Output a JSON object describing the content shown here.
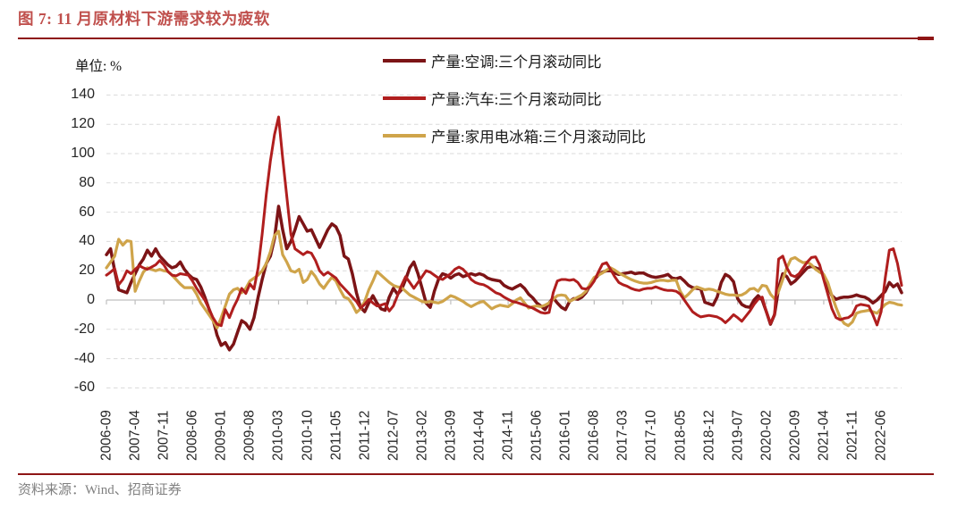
{
  "figure": {
    "title": "图 7: 11 月原材料下游需求较为疲软",
    "unit_label": "单位: %",
    "source_note": "资料来源：Wind、招商证券"
  },
  "colors": {
    "title": "#C0504D",
    "rule": "#8E1515",
    "gridline": "#DADADA",
    "zero_axis": "#BFBFBF",
    "series_ac": "#7C1416",
    "series_auto": "#B01E1E",
    "series_fridge": "#CFA44A"
  },
  "legend": {
    "items": [
      {
        "label": "产量:空调:三个月滚动同比",
        "color": "#7C1416"
      },
      {
        "label": "产量:汽车:三个月滚动同比",
        "color": "#B01E1E"
      },
      {
        "label": "产量:家用电冰箱:三个月滚动同比",
        "color": "#CFA44A"
      }
    ]
  },
  "chart_data": {
    "type": "line",
    "title": "图 7: 11 月原材料下游需求较为疲软",
    "ylabel": "单位: %",
    "ylim": [
      -60,
      140
    ],
    "y_ticks": [
      140,
      120,
      100,
      80,
      60,
      40,
      20,
      0,
      -20,
      -40,
      -60
    ],
    "grid": "horizontal-dashed",
    "legend_position": "top",
    "x_start": "2006-09",
    "x_end": "2022-11",
    "x_frequency": "monthly",
    "x_tick_every_n_months": 7,
    "x_tick_labels": [
      "2006-09",
      "2007-04",
      "2007-11",
      "2008-06",
      "2009-01",
      "2009-08",
      "2010-03",
      "2010-10",
      "2011-05",
      "2011-12",
      "2012-07",
      "2013-02",
      "2013-09",
      "2014-04",
      "2014-11",
      "2015-06",
      "2016-01",
      "2016-08",
      "2017-03",
      "2017-10",
      "2018-05",
      "2018-12",
      "2019-07",
      "2020-02",
      "2020-09",
      "2021-04",
      "2021-11",
      "2022-06"
    ],
    "series": [
      {
        "name": "产量:空调:三个月滚动同比",
        "color": "#7C1416",
        "values": [
          31,
          35,
          20,
          7,
          6,
          5,
          12,
          18,
          24,
          28,
          34,
          30,
          35,
          30,
          27,
          24,
          22,
          23,
          26,
          21,
          17.5,
          15,
          14,
          9,
          2,
          -6,
          -13,
          -24,
          -31,
          -29,
          -34,
          -30,
          -22,
          -14,
          -16,
          -20,
          -12,
          2,
          14,
          25,
          30,
          42,
          64,
          48,
          35,
          40,
          48,
          57,
          52,
          47,
          48,
          42,
          36,
          42,
          48,
          52,
          50,
          44,
          30,
          28,
          18,
          5,
          -5,
          -8,
          -2,
          3,
          -2,
          -6,
          -7,
          2,
          8,
          4,
          7,
          14,
          22,
          26,
          18,
          8,
          -2,
          -5,
          6,
          14,
          18,
          17,
          15,
          17,
          18,
          16,
          17,
          18,
          17,
          18,
          17,
          15,
          14,
          13.5,
          13,
          10,
          8.5,
          7.5,
          9,
          10.5,
          8,
          4,
          1.5,
          -2,
          -4,
          -6.5,
          -2,
          1.5,
          -2,
          -5,
          -6.5,
          -1,
          1,
          0.5,
          2,
          5,
          10,
          14,
          17,
          19,
          20,
          20,
          18.5,
          17.5,
          18,
          18.5,
          19,
          18,
          18.5,
          18.5,
          17,
          16,
          15.5,
          16,
          16.5,
          17.5,
          15,
          14.5,
          15.5,
          13,
          10,
          8.5,
          8,
          7.5,
          -1.5,
          -2.5,
          -3.5,
          2,
          12,
          17.5,
          16,
          12.5,
          1,
          -3,
          -4.5,
          -5,
          0,
          3,
          0,
          -8,
          -16.5,
          -10,
          8,
          18,
          16,
          11,
          13,
          16,
          19,
          22,
          23,
          22,
          21,
          17,
          9,
          3,
          0.5,
          1.5,
          2,
          2,
          2.5,
          3.5,
          2.5,
          2,
          0.5,
          -2,
          0,
          3,
          6,
          12,
          9,
          11,
          5
        ]
      },
      {
        "name": "产量:汽车:三个月滚动同比",
        "color": "#B01E1E",
        "values": [
          17,
          19,
          21.5,
          10.5,
          14,
          20,
          18,
          21,
          23.5,
          22,
          21,
          22.5,
          24,
          27,
          24,
          19.5,
          17,
          16.5,
          18,
          17.5,
          17,
          13,
          8,
          4,
          0,
          -6,
          -12,
          -16.5,
          -17.5,
          -6.5,
          -12,
          -5,
          0.5,
          8,
          4.5,
          11,
          7.5,
          22,
          45,
          72,
          95,
          113,
          125,
          97,
          71,
          45,
          35,
          33,
          31,
          33,
          32,
          27,
          20,
          17,
          19,
          17,
          15,
          11,
          8,
          5,
          2,
          -1,
          -5.5,
          -3,
          0.5,
          -2,
          -4,
          -3.5,
          -2.5,
          -7.5,
          -4,
          3,
          10,
          16,
          12,
          8,
          12,
          16,
          20,
          19,
          17,
          15,
          14,
          16,
          18,
          21,
          22.5,
          21,
          18,
          14,
          12,
          11,
          10.5,
          9,
          7,
          5,
          4,
          2,
          0.5,
          -1,
          -1.5,
          -2.5,
          -3.5,
          -4.5,
          -5.5,
          -7,
          -8.5,
          -9,
          -8.5,
          5,
          13,
          14,
          14,
          13.5,
          14,
          12,
          8,
          7.5,
          9,
          13,
          19,
          24.5,
          25.5,
          21,
          16,
          12,
          10.5,
          9.5,
          8,
          7,
          6.5,
          7.5,
          8,
          8,
          9,
          8,
          7,
          6.5,
          6.5,
          6,
          4,
          0,
          -4,
          -8,
          -10,
          -11.5,
          -11,
          -10.5,
          -11,
          -11.5,
          -13,
          -15.5,
          -13,
          -10,
          -12,
          -14.5,
          -11,
          -7.5,
          -3,
          0.5,
          2,
          -8,
          -16,
          -10,
          28,
          30,
          22,
          17,
          16,
          18,
          22,
          26,
          29,
          29.5,
          24,
          14,
          4,
          -6,
          -12,
          -13.5,
          -12.5,
          -12,
          -10,
          -4,
          -3,
          -3.5,
          -4,
          -10,
          -17,
          -8,
          15,
          34,
          35,
          25,
          10
        ]
      },
      {
        "name": "产量:家用电冰箱:三个月滚动同比",
        "color": "#CFA44A",
        "values": [
          22,
          26,
          30,
          41.5,
          37.5,
          40.5,
          40,
          6,
          13,
          19,
          22,
          21,
          20,
          21,
          20,
          19.5,
          17,
          14,
          11,
          8.5,
          8.5,
          8.5,
          4,
          -2,
          -6,
          -10,
          -14,
          -19,
          -12,
          -4,
          4,
          7,
          8,
          5,
          8,
          13,
          15,
          17,
          20,
          25,
          33,
          44,
          47,
          31,
          26,
          20,
          19,
          21,
          12,
          14,
          19.5,
          16,
          11,
          8,
          12,
          15.5,
          13,
          7,
          2,
          1,
          -3,
          -8.5,
          -6,
          -1,
          7,
          13,
          19.5,
          17,
          14.5,
          12,
          10,
          9,
          8.5,
          6,
          3.5,
          2,
          0.5,
          -1,
          -1.5,
          -1,
          -1.5,
          -2,
          -1,
          1,
          3,
          2,
          0.5,
          -1,
          -3,
          -4.5,
          -3,
          -1.5,
          -1,
          -3.5,
          -6,
          -4.5,
          -3.5,
          -4,
          -4.5,
          -2.5,
          0,
          1.5,
          -2,
          -5.5,
          -4.5,
          -4,
          -4.5,
          -3.5,
          -2,
          0.5,
          3,
          3.5,
          3,
          -1,
          0.5,
          2,
          3.5,
          6,
          11,
          15.5,
          17,
          18.5,
          20.5,
          22,
          20.5,
          18.5,
          17,
          15.5,
          14,
          13,
          12,
          11.5,
          11.5,
          12,
          13,
          13.5,
          13.5,
          13,
          13.5,
          13.5,
          6,
          1.5,
          4,
          7,
          9,
          8,
          7,
          7.5,
          7,
          6,
          5,
          4,
          3.5,
          3.5,
          3,
          3.5,
          5,
          7.5,
          8,
          6,
          10,
          9.5,
          4,
          1,
          6,
          14,
          22,
          28,
          29,
          27,
          25.5,
          26,
          24,
          21,
          19,
          17.5,
          12,
          3,
          -5,
          -12,
          -16,
          -17.5,
          -15,
          -9,
          -8,
          -7.5,
          -7,
          -8,
          -9,
          -6,
          -3,
          -1.5,
          -2,
          -3,
          -3.5
        ]
      }
    ]
  }
}
